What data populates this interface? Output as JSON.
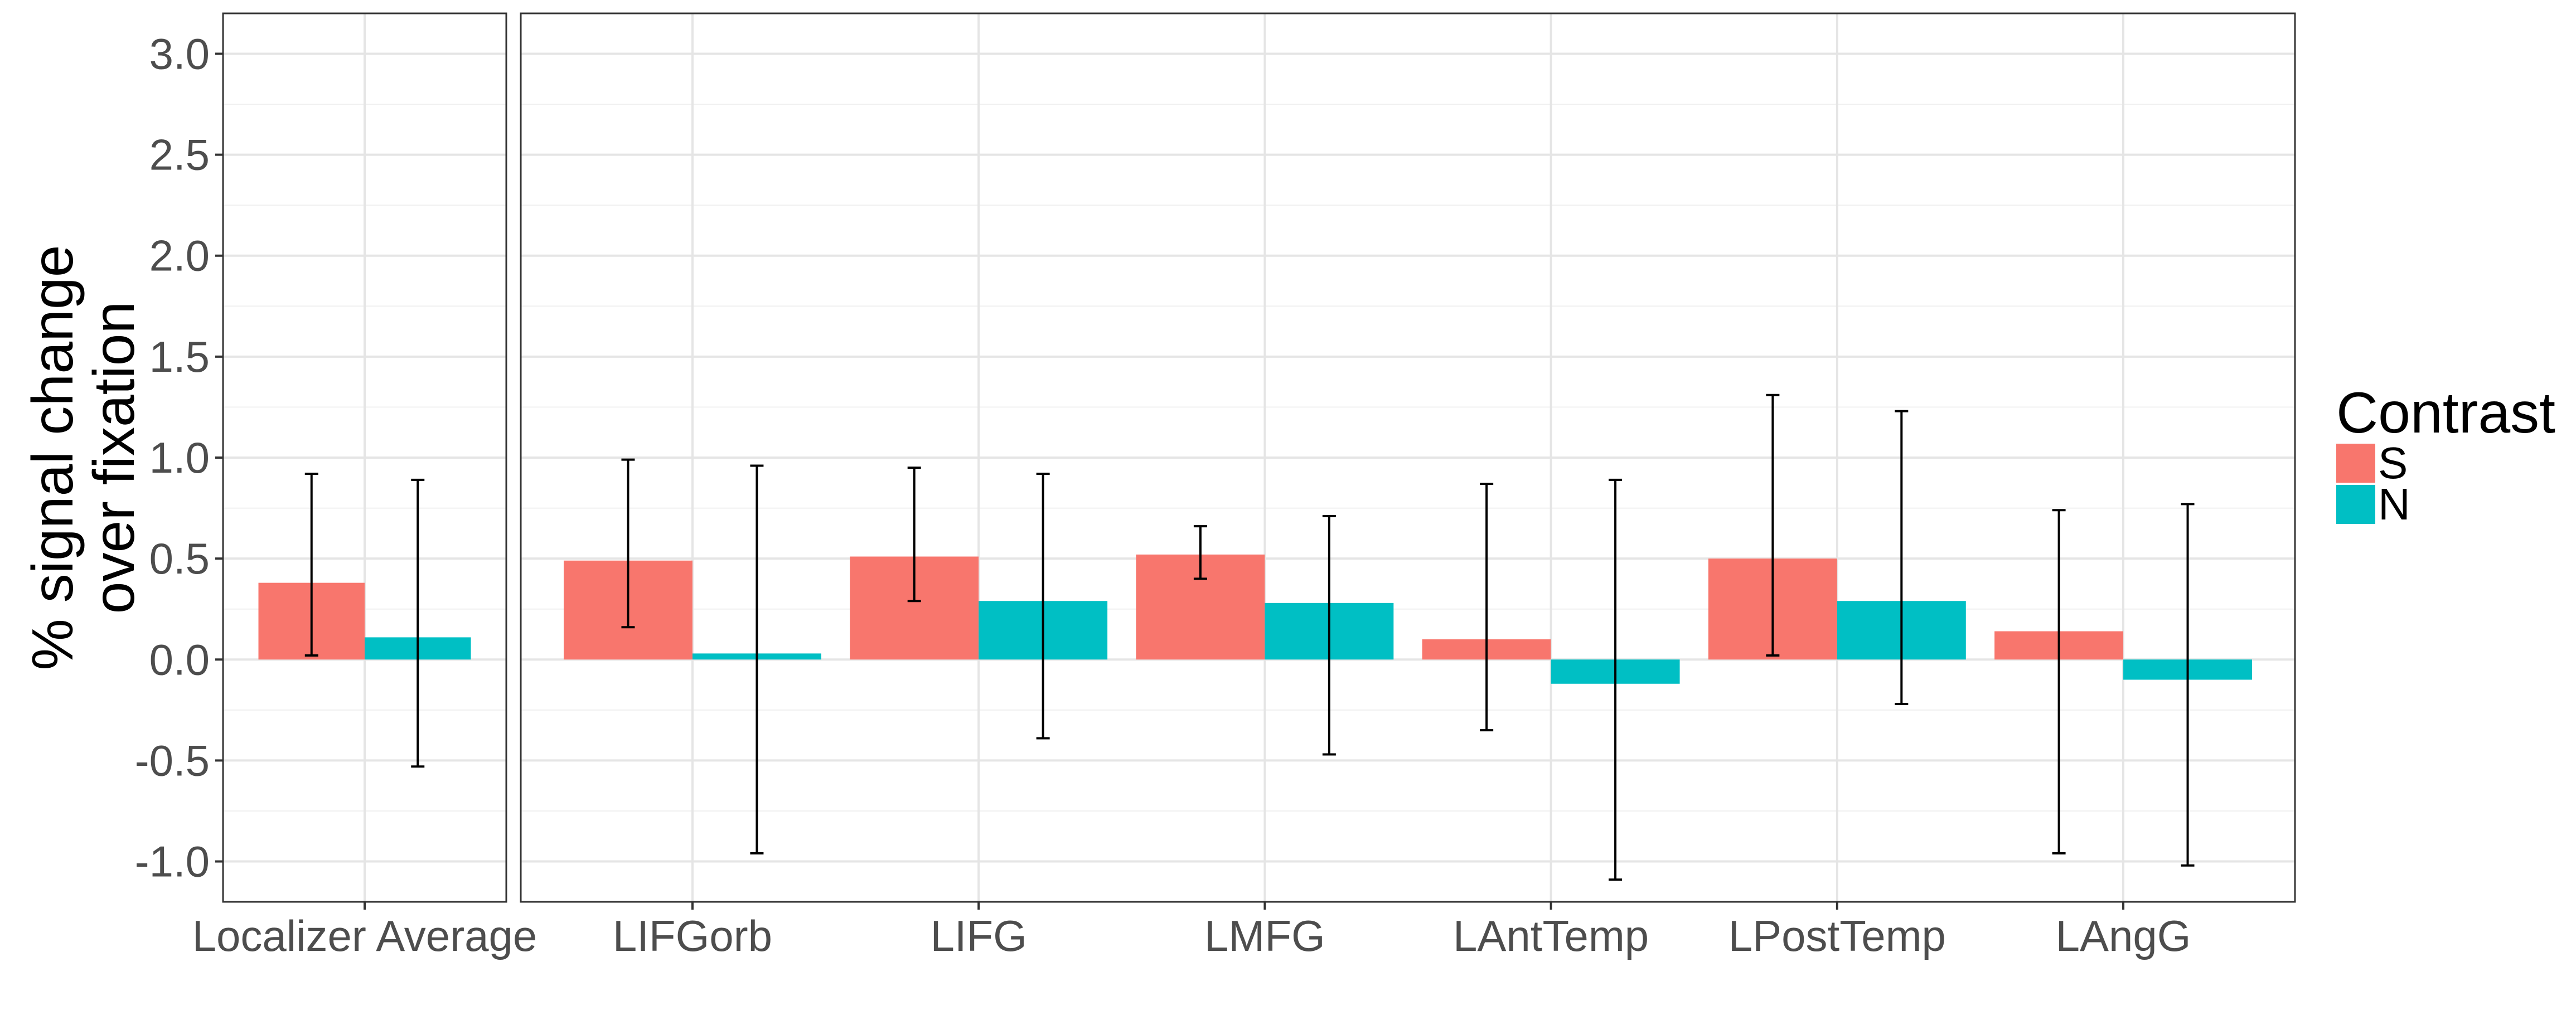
{
  "chart_data": {
    "type": "bar",
    "ylabel_lines": [
      "% signal change",
      "over fixation"
    ],
    "xlabel": "",
    "ylim": [
      -1.2,
      3.2
    ],
    "yticks": [
      -1.0,
      -0.5,
      0.0,
      0.5,
      1.0,
      1.5,
      2.0,
      2.5,
      3.0
    ],
    "ytick_labels": [
      "-1.0",
      "-0.5",
      "0.0",
      "0.5",
      "1.0",
      "1.5",
      "2.0",
      "2.5",
      "3.0"
    ],
    "grid": true,
    "legend": {
      "title": "Contrast",
      "placement": "right"
    },
    "colors": {
      "S": "#F8766D",
      "N": "#00BFC4"
    },
    "panels": [
      {
        "categories": [
          "Localizer Average"
        ],
        "series": [
          {
            "name": "S",
            "values": [
              0.38
            ],
            "error_low": [
              0.02
            ],
            "error_high": [
              0.92
            ]
          },
          {
            "name": "N",
            "values": [
              0.11
            ],
            "error_low": [
              -0.53
            ],
            "error_high": [
              0.89
            ]
          }
        ]
      },
      {
        "categories": [
          "LIFGorb",
          "LIFG",
          "LMFG",
          "LAntTemp",
          "LPostTemp",
          "LAngG"
        ],
        "series": [
          {
            "name": "S",
            "values": [
              0.49,
              0.51,
              0.52,
              0.1,
              0.5,
              0.14
            ],
            "error_low": [
              0.16,
              0.29,
              0.4,
              -0.35,
              0.02,
              -0.96
            ],
            "error_high": [
              0.99,
              0.95,
              0.66,
              0.87,
              1.31,
              0.74
            ]
          },
          {
            "name": "N",
            "values": [
              0.03,
              0.29,
              0.28,
              -0.12,
              0.29,
              -0.1
            ],
            "error_low": [
              -0.96,
              -0.39,
              -0.47,
              -1.09,
              -0.22,
              -1.02
            ],
            "error_high": [
              0.96,
              0.92,
              0.71,
              0.89,
              1.23,
              0.77
            ]
          }
        ]
      }
    ]
  }
}
